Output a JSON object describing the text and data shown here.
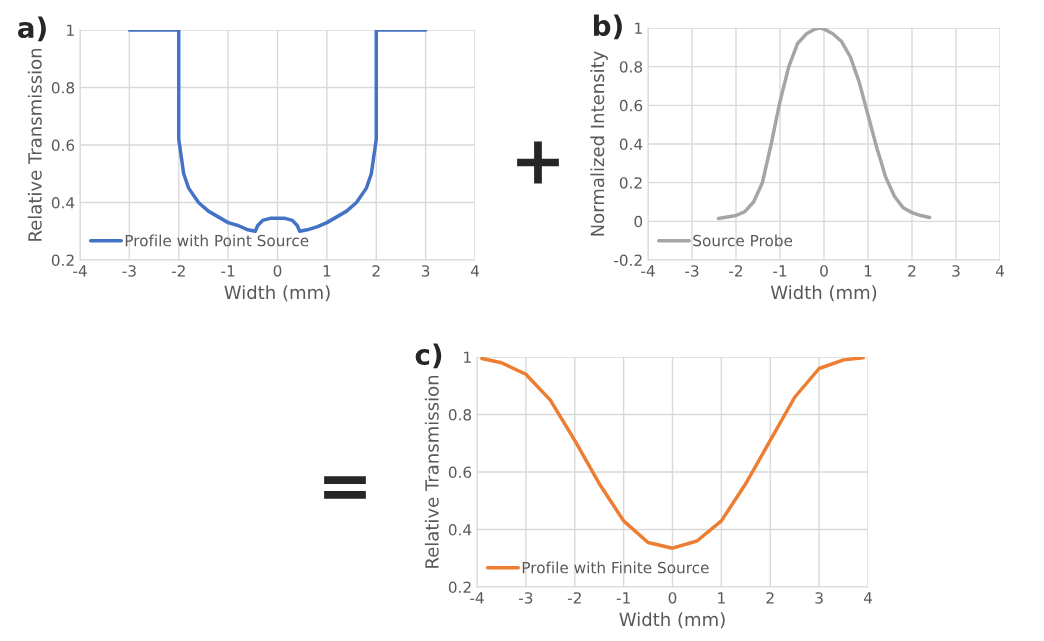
{
  "chart_data": [
    {
      "type": "line",
      "title": "a)",
      "xlabel": "Width (mm)",
      "ylabel": "Relative Transmission",
      "xlim": [
        -4,
        4
      ],
      "xticks": [
        -4,
        -3,
        -2,
        -1,
        0,
        1,
        2,
        3,
        4
      ],
      "ylim": [
        0.2,
        1
      ],
      "yticks": [
        0.2,
        0.4,
        0.6,
        0.8,
        1
      ],
      "grid": true,
      "legend": "bottom left",
      "series": [
        {
          "name": "Profile with Point Source",
          "color": "#4472c4",
          "x": [
            -3,
            -2,
            -2,
            -1.9,
            -1.8,
            -1.6,
            -1.4,
            -1.2,
            -1,
            -0.8,
            -0.6,
            -0.45,
            -0.4,
            -0.3,
            -0.15,
            0,
            0.15,
            0.3,
            0.4,
            0.45,
            0.6,
            0.8,
            1,
            1.2,
            1.4,
            1.6,
            1.8,
            1.9,
            2,
            2,
            3
          ],
          "values": [
            1,
            1,
            0.62,
            0.5,
            0.45,
            0.4,
            0.37,
            0.35,
            0.33,
            0.32,
            0.305,
            0.3,
            0.32,
            0.338,
            0.345,
            0.345,
            0.345,
            0.338,
            0.32,
            0.3,
            0.305,
            0.315,
            0.33,
            0.35,
            0.37,
            0.4,
            0.45,
            0.5,
            0.62,
            1,
            1
          ]
        }
      ]
    },
    {
      "type": "line",
      "title": "b)",
      "xlabel": "Width (mm)",
      "ylabel": "Normalized Intensity",
      "annotations": [
        "+"
      ],
      "xlim": [
        -4,
        4
      ],
      "xticks": [
        -4,
        -3,
        -2,
        -1,
        0,
        1,
        2,
        3,
        4
      ],
      "ylim": [
        -0.2,
        1
      ],
      "yticks": [
        -0.2,
        0,
        0.2,
        0.4,
        0.6,
        0.8,
        1
      ],
      "grid": true,
      "legend": "bottom left",
      "series": [
        {
          "name": "Source Probe",
          "color": "#a5a5a5",
          "x": [
            -2.4,
            -2,
            -1.8,
            -1.6,
            -1.4,
            -1.2,
            -1,
            -0.8,
            -0.6,
            -0.4,
            -0.2,
            -0.1,
            0,
            0.2,
            0.4,
            0.6,
            0.8,
            1,
            1.2,
            1.4,
            1.6,
            1.8,
            2,
            2.2,
            2.4
          ],
          "values": [
            0.015,
            0.03,
            0.05,
            0.1,
            0.2,
            0.4,
            0.62,
            0.8,
            0.92,
            0.97,
            0.995,
            1,
            0.995,
            0.97,
            0.93,
            0.85,
            0.72,
            0.55,
            0.38,
            0.23,
            0.13,
            0.07,
            0.045,
            0.03,
            0.02
          ]
        }
      ]
    },
    {
      "type": "line",
      "title": "c)",
      "xlabel": "Width (mm)",
      "ylabel": "Relative Transmission",
      "annotations": [
        "="
      ],
      "xlim": [
        -4,
        4
      ],
      "xticks": [
        -4,
        -3,
        -2,
        -1,
        0,
        1,
        2,
        3,
        4
      ],
      "ylim": [
        0.2,
        1
      ],
      "yticks": [
        0.2,
        0.4,
        0.6,
        0.8,
        1
      ],
      "grid": true,
      "legend": "bottom left",
      "series": [
        {
          "name": "Profile with Finite Source",
          "color": "#ed7d31",
          "x": [
            -3.9,
            -3.5,
            -3,
            -2.5,
            -2,
            -1.5,
            -1,
            -0.5,
            0,
            0.5,
            1,
            1.5,
            2,
            2.5,
            3,
            3.5,
            3.9
          ],
          "values": [
            0.995,
            0.98,
            0.94,
            0.85,
            0.71,
            0.56,
            0.43,
            0.355,
            0.335,
            0.36,
            0.43,
            0.56,
            0.71,
            0.86,
            0.96,
            0.99,
            0.997
          ]
        }
      ]
    }
  ]
}
